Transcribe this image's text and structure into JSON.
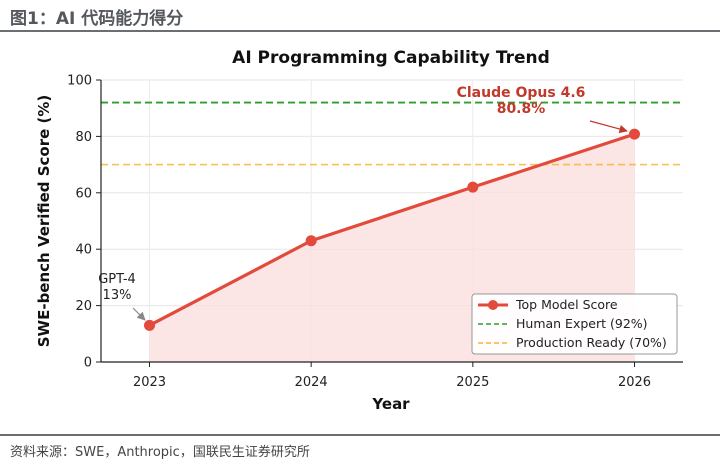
{
  "figure": {
    "title": "图1：AI 代码能力得分",
    "source": "资料来源：SWE，Anthropic，国联民生证券研究所"
  },
  "colors": {
    "line": "#e24a3b",
    "fill": "#fbdcdc",
    "human": "#2ca02c",
    "production": "#f7b733",
    "annotation_red": "#c0392b"
  },
  "chart_data": {
    "type": "line",
    "title": "AI Programming Capability Trend",
    "xlabel": "Year",
    "ylabel": "SWE-bench Verified Score (%)",
    "categories": [
      "2023",
      "2024",
      "2025",
      "2026"
    ],
    "x": [
      2023,
      2024,
      2025,
      2026
    ],
    "ylim": [
      0,
      100
    ],
    "yticks": [
      0,
      20,
      40,
      60,
      80,
      100
    ],
    "grid": true,
    "series": [
      {
        "name": "Top Model Score",
        "values": [
          13,
          43,
          62,
          80.8
        ]
      }
    ],
    "reference_lines": [
      {
        "name": "Human Expert (92%)",
        "value": 92,
        "style": "dashed"
      },
      {
        "name": "Production Ready (70%)",
        "value": 70,
        "style": "dashed"
      }
    ],
    "annotations": [
      {
        "point_index": 0,
        "lines": [
          "GPT-4",
          "13%"
        ]
      },
      {
        "point_index": 3,
        "lines": [
          "Claude Opus 4.6",
          "80.8%"
        ]
      }
    ],
    "legend_position": "lower-right"
  }
}
